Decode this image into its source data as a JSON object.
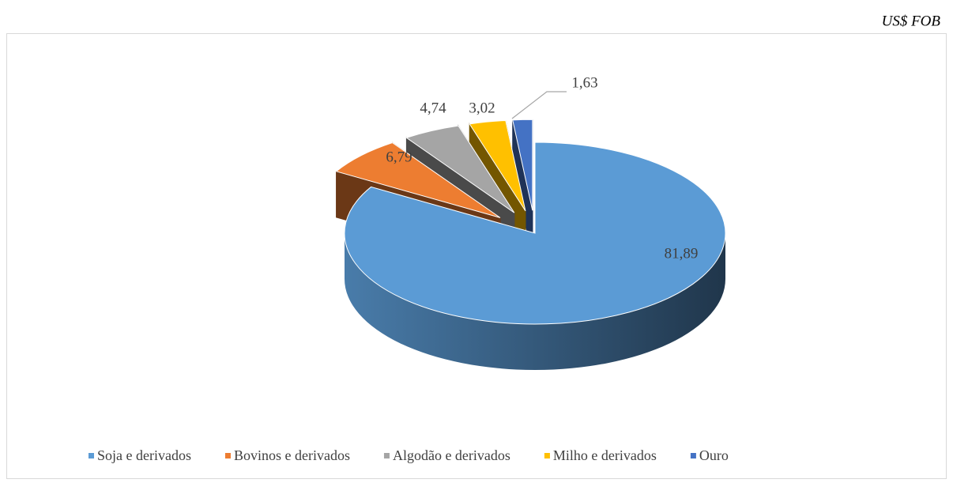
{
  "chart_data": {
    "type": "pie",
    "subtitle": "US$ FOB",
    "categories": [
      "Soja e derivados",
      "Bovinos e derivados",
      "Algodão e derivados",
      "Milho e derivados",
      "Ouro"
    ],
    "values": [
      81.89,
      6.79,
      4.74,
      3.02,
      1.63
    ],
    "value_labels": [
      "81,89",
      "6,79",
      "4,74",
      "3,02",
      "1,63"
    ],
    "colors": [
      "#5b9bd5",
      "#ed7d31",
      "#a5a5a5",
      "#ffc000",
      "#4472c4"
    ],
    "legend": "bottom"
  }
}
